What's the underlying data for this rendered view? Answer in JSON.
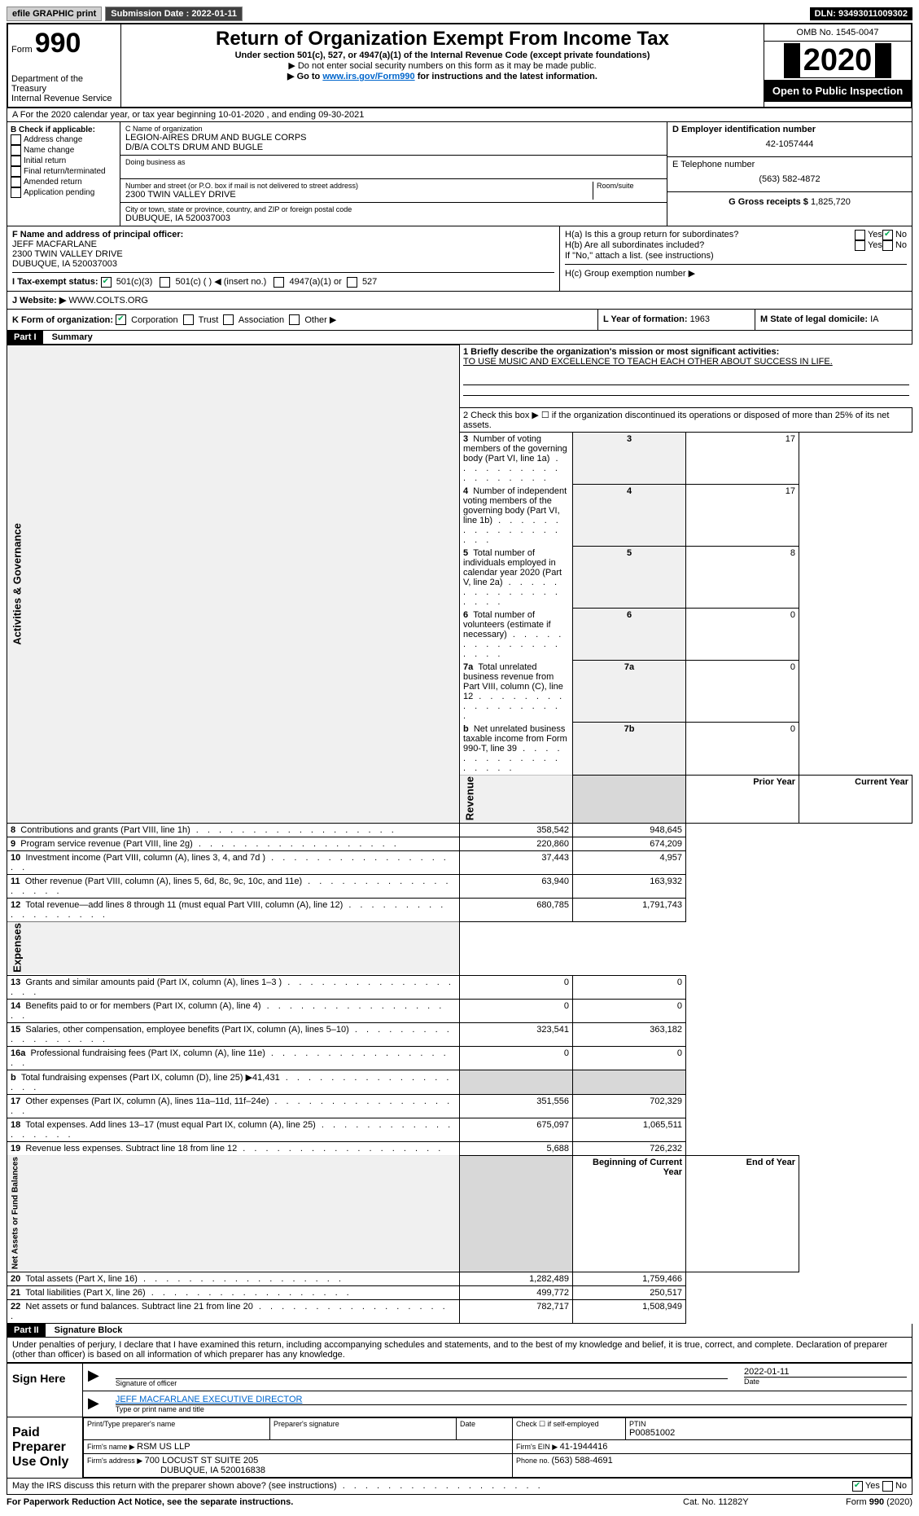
{
  "topbar": {
    "efile": "efile GRAPHIC print",
    "submission_label": "Submission Date : 2022-01-11",
    "dln": "DLN: 93493011009302"
  },
  "header": {
    "form_label": "Form",
    "form_num": "990",
    "dept": "Department of the Treasury",
    "irs": "Internal Revenue Service",
    "title": "Return of Organization Exempt From Income Tax",
    "sub1": "Under section 501(c), 527, or 4947(a)(1) of the Internal Revenue Code (except private foundations)",
    "sub2": "▶ Do not enter social security numbers on this form as it may be made public.",
    "sub3_pre": "▶ Go to ",
    "sub3_link": "www.irs.gov/Form990",
    "sub3_post": " for instructions and the latest information.",
    "omb": "OMB No. 1545-0047",
    "year": "2020",
    "public": "Open to Public Inspection"
  },
  "line_a": "A For the 2020 calendar year, or tax year beginning 10-01-2020    , and ending 09-30-2021",
  "box_b": {
    "title": "B Check if applicable:",
    "items": [
      "Address change",
      "Name change",
      "Initial return",
      "Final return/terminated",
      "Amended return",
      "Application pending"
    ]
  },
  "box_c": {
    "label": "C Name of organization",
    "name1": "LEGION-AIRES DRUM AND BUGLE CORPS",
    "name2": "D/B/A COLTS DRUM AND BUGLE",
    "dba_label": "Doing business as",
    "addr_label": "Number and street (or P.O. box if mail is not delivered to street address)",
    "addr": "2300 TWIN VALLEY DRIVE",
    "room_label": "Room/suite",
    "city_label": "City or town, state or province, country, and ZIP or foreign postal code",
    "city": "DUBUQUE, IA  520037003"
  },
  "box_d": {
    "label": "D Employer identification number",
    "value": "42-1057444"
  },
  "box_e": {
    "label": "E Telephone number",
    "value": "(563) 582-4872"
  },
  "box_g": {
    "label": "G Gross receipts $ ",
    "value": "1,825,720"
  },
  "box_f": {
    "label": "F Name and address of principal officer:",
    "name": "JEFF MACFARLANE",
    "addr1": "2300 TWIN VALLEY DRIVE",
    "addr2": "DUBUQUE, IA  520037003"
  },
  "box_h": {
    "ha": "H(a)  Is this a group return for subordinates?",
    "hb": "H(b)  Are all subordinates included?",
    "hb_note": "If \"No,\" attach a list. (see instructions)",
    "hc": "H(c)  Group exemption number ▶"
  },
  "box_i": {
    "label": "I  Tax-exempt status:",
    "opts": [
      "501(c)(3)",
      "501(c) (  ) ◀ (insert no.)",
      "4947(a)(1) or",
      "527"
    ]
  },
  "box_j": {
    "label": "J  Website: ▶",
    "value": "WWW.COLTS.ORG"
  },
  "box_k": {
    "label": "K Form of organization:",
    "opts": [
      "Corporation",
      "Trust",
      "Association",
      "Other ▶"
    ]
  },
  "box_l": {
    "label": "L Year of formation: ",
    "value": "1963"
  },
  "box_m": {
    "label": "M State of legal domicile: ",
    "value": "IA"
  },
  "part1": {
    "header": "Part I",
    "title": "Summary",
    "q1_label": "1  Briefly describe the organization's mission or most significant activities:",
    "q1_value": "TO USE MUSIC AND EXCELLENCE TO TEACH EACH OTHER ABOUT SUCCESS IN LIFE.",
    "q2": "2    Check this box ▶ ☐  if the organization discontinued its operations or disposed of more than 25% of its net assets.",
    "rows_gov": [
      {
        "n": "3",
        "t": "Number of voting members of the governing body (Part VI, line 1a)",
        "c": "3",
        "v": "17"
      },
      {
        "n": "4",
        "t": "Number of independent voting members of the governing body (Part VI, line 1b)",
        "c": "4",
        "v": "17"
      },
      {
        "n": "5",
        "t": "Total number of individuals employed in calendar year 2020 (Part V, line 2a)",
        "c": "5",
        "v": "8"
      },
      {
        "n": "6",
        "t": "Total number of volunteers (estimate if necessary)",
        "c": "6",
        "v": "0"
      },
      {
        "n": "7a",
        "t": "Total unrelated business revenue from Part VIII, column (C), line 12",
        "c": "7a",
        "v": "0"
      },
      {
        "n": "b",
        "t": "Net unrelated business taxable income from Form 990-T, line 39",
        "c": "7b",
        "v": "0"
      }
    ],
    "col_headers": {
      "prior": "Prior Year",
      "current": "Current Year"
    },
    "rows_rev": [
      {
        "n": "8",
        "t": "Contributions and grants (Part VIII, line 1h)",
        "p": "358,542",
        "c": "948,645"
      },
      {
        "n": "9",
        "t": "Program service revenue (Part VIII, line 2g)",
        "p": "220,860",
        "c": "674,209"
      },
      {
        "n": "10",
        "t": "Investment income (Part VIII, column (A), lines 3, 4, and 7d )",
        "p": "37,443",
        "c": "4,957"
      },
      {
        "n": "11",
        "t": "Other revenue (Part VIII, column (A), lines 5, 6d, 8c, 9c, 10c, and 11e)",
        "p": "63,940",
        "c": "163,932"
      },
      {
        "n": "12",
        "t": "Total revenue—add lines 8 through 11 (must equal Part VIII, column (A), line 12)",
        "p": "680,785",
        "c": "1,791,743"
      }
    ],
    "rows_exp": [
      {
        "n": "13",
        "t": "Grants and similar amounts paid (Part IX, column (A), lines 1–3 )",
        "p": "0",
        "c": "0"
      },
      {
        "n": "14",
        "t": "Benefits paid to or for members (Part IX, column (A), line 4)",
        "p": "0",
        "c": "0"
      },
      {
        "n": "15",
        "t": "Salaries, other compensation, employee benefits (Part IX, column (A), lines 5–10)",
        "p": "323,541",
        "c": "363,182"
      },
      {
        "n": "16a",
        "t": "Professional fundraising fees (Part IX, column (A), line 11e)",
        "p": "0",
        "c": "0"
      },
      {
        "n": "b",
        "t": "Total fundraising expenses (Part IX, column (D), line 25) ▶41,431",
        "p": "",
        "c": "",
        "shaded": true
      },
      {
        "n": "17",
        "t": "Other expenses (Part IX, column (A), lines 11a–11d, 11f–24e)",
        "p": "351,556",
        "c": "702,329"
      },
      {
        "n": "18",
        "t": "Total expenses. Add lines 13–17 (must equal Part IX, column (A), line 25)",
        "p": "675,097",
        "c": "1,065,511"
      },
      {
        "n": "19",
        "t": "Revenue less expenses. Subtract line 18 from line 12",
        "p": "5,688",
        "c": "726,232"
      }
    ],
    "col_headers2": {
      "begin": "Beginning of Current Year",
      "end": "End of Year"
    },
    "rows_net": [
      {
        "n": "20",
        "t": "Total assets (Part X, line 16)",
        "p": "1,282,489",
        "c": "1,759,466"
      },
      {
        "n": "21",
        "t": "Total liabilities (Part X, line 26)",
        "p": "499,772",
        "c": "250,517"
      },
      {
        "n": "22",
        "t": "Net assets or fund balances. Subtract line 21 from line 20",
        "p": "782,717",
        "c": "1,508,949"
      }
    ],
    "side_labels": {
      "gov": "Activities & Governance",
      "rev": "Revenue",
      "exp": "Expenses",
      "net": "Net Assets or Fund Balances"
    }
  },
  "part2": {
    "header": "Part II",
    "title": "Signature Block",
    "declaration": "Under penalties of perjury, I declare that I have examined this return, including accompanying schedules and statements, and to the best of my knowledge and belief, it is true, correct, and complete. Declaration of preparer (other than officer) is based on all information of which preparer has any knowledge.",
    "sign_here": "Sign Here",
    "sig_officer": "Signature of officer",
    "date_label": "Date",
    "date_val": "2022-01-11",
    "officer_name": "JEFF MACFARLANE  EXECUTIVE DIRECTOR",
    "type_label": "Type or print name and title",
    "paid": "Paid Preparer Use Only",
    "prep_name_label": "Print/Type preparer's name",
    "prep_sig_label": "Preparer's signature",
    "check_self": "Check ☐ if self-employed",
    "ptin_label": "PTIN",
    "ptin": "P00851002",
    "firm_name_label": "Firm's name    ▶ ",
    "firm_name": "RSM US LLP",
    "firm_ein_label": "Firm's EIN ▶ ",
    "firm_ein": "41-1944416",
    "firm_addr_label": "Firm's address ▶ ",
    "firm_addr1": "700 LOCUST ST SUITE 205",
    "firm_addr2": "DUBUQUE, IA  520016838",
    "phone_label": "Phone no. ",
    "phone": "(563) 588-4691",
    "discuss": "May the IRS discuss this return with the preparer shown above? (see instructions)",
    "yes": "Yes",
    "no": "No"
  },
  "footer": {
    "pra": "For Paperwork Reduction Act Notice, see the separate instructions.",
    "cat": "Cat. No. 11282Y",
    "form": "Form 990 (2020)"
  }
}
